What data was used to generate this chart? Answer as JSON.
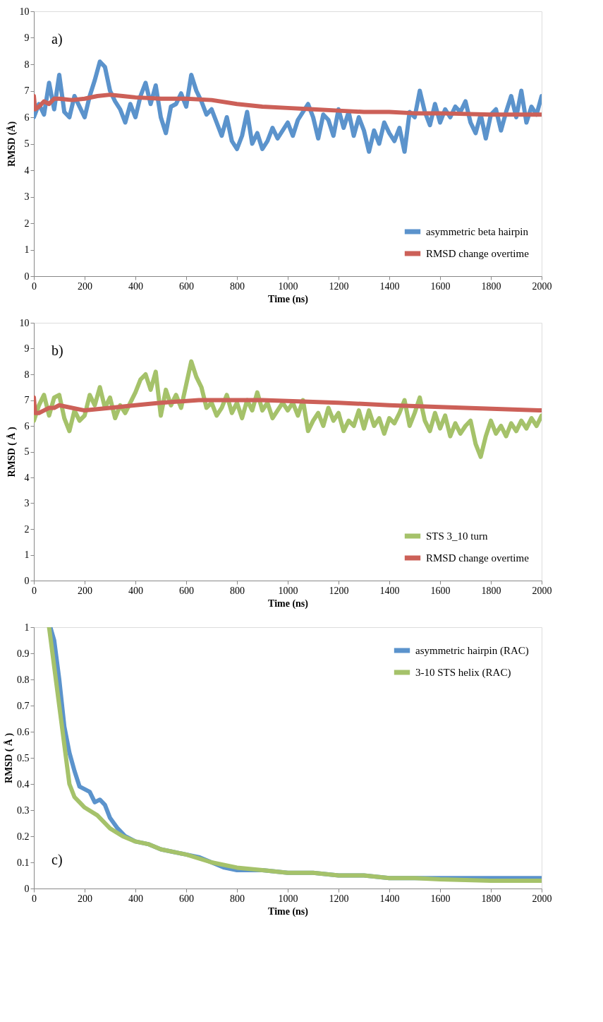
{
  "chart_data": [
    {
      "type": "line",
      "xlabel": "Time (ns)",
      "ylabel": "RMSD (Å)",
      "annotations": [
        "a)"
      ],
      "xlim": [
        0,
        2000
      ],
      "ylim": [
        0,
        10
      ],
      "xticks": [
        0,
        200,
        400,
        600,
        800,
        1000,
        1200,
        1400,
        1600,
        1800,
        2000
      ],
      "yticks": [
        0,
        1,
        2,
        3,
        4,
        5,
        6,
        7,
        8,
        9,
        10
      ],
      "grid": false,
      "legend": "bottom right",
      "line_style": "solid",
      "marker": "none",
      "series": [
        {
          "name": "asymmetric beta hairpin",
          "color": "#5b93cc",
          "x": [
            0,
            20,
            40,
            60,
            80,
            100,
            120,
            140,
            160,
            180,
            200,
            220,
            240,
            260,
            280,
            300,
            320,
            340,
            360,
            380,
            400,
            420,
            440,
            460,
            480,
            500,
            520,
            540,
            560,
            580,
            600,
            620,
            640,
            660,
            680,
            700,
            720,
            740,
            760,
            780,
            800,
            820,
            840,
            860,
            880,
            900,
            920,
            940,
            960,
            980,
            1000,
            1020,
            1040,
            1060,
            1080,
            1100,
            1120,
            1140,
            1160,
            1180,
            1200,
            1220,
            1240,
            1260,
            1280,
            1300,
            1320,
            1340,
            1360,
            1380,
            1400,
            1420,
            1440,
            1460,
            1480,
            1500,
            1520,
            1540,
            1560,
            1580,
            1600,
            1620,
            1640,
            1660,
            1680,
            1700,
            1720,
            1740,
            1760,
            1780,
            1800,
            1820,
            1840,
            1860,
            1880,
            1900,
            1920,
            1940,
            1960,
            1980,
            2000
          ],
          "values": [
            6.0,
            6.5,
            6.1,
            7.3,
            6.3,
            7.6,
            6.2,
            6.0,
            6.8,
            6.4,
            6.0,
            6.8,
            7.4,
            8.1,
            7.9,
            7.0,
            6.6,
            6.3,
            5.8,
            6.5,
            6.0,
            6.8,
            7.3,
            6.5,
            7.2,
            6.0,
            5.4,
            6.4,
            6.5,
            6.9,
            6.4,
            7.6,
            7.0,
            6.6,
            6.1,
            6.3,
            5.8,
            5.3,
            6.0,
            5.1,
            4.8,
            5.3,
            6.2,
            5.0,
            5.4,
            4.8,
            5.1,
            5.6,
            5.2,
            5.5,
            5.8,
            5.3,
            5.9,
            6.2,
            6.5,
            6.0,
            5.2,
            6.1,
            5.9,
            5.3,
            6.3,
            5.6,
            6.2,
            5.3,
            6.0,
            5.5,
            4.7,
            5.5,
            5.0,
            5.8,
            5.4,
            5.1,
            5.6,
            4.7,
            6.2,
            6.0,
            7.0,
            6.2,
            5.7,
            6.5,
            5.8,
            6.3,
            6.0,
            6.4,
            6.2,
            6.6,
            5.8,
            5.4,
            6.1,
            5.2,
            6.1,
            6.3,
            5.5,
            6.2,
            6.8,
            6.0,
            7.0,
            5.8,
            6.4,
            6.1,
            6.8
          ]
        },
        {
          "name": "RMSD change overtime",
          "color": "#cc6058",
          "x": [
            0,
            5,
            20,
            40,
            60,
            80,
            100,
            150,
            200,
            250,
            300,
            350,
            400,
            500,
            600,
            700,
            800,
            900,
            1000,
            1100,
            1200,
            1300,
            1400,
            1500,
            1600,
            1800,
            2000
          ],
          "values": [
            6.8,
            6.3,
            6.4,
            6.6,
            6.5,
            6.7,
            6.7,
            6.65,
            6.7,
            6.8,
            6.85,
            6.8,
            6.75,
            6.7,
            6.7,
            6.65,
            6.5,
            6.4,
            6.35,
            6.3,
            6.25,
            6.2,
            6.2,
            6.15,
            6.15,
            6.1,
            6.1
          ]
        }
      ]
    },
    {
      "type": "line",
      "xlabel": "Time (ns)",
      "ylabel": "RMSD ( Å )",
      "annotations": [
        "b)"
      ],
      "xlim": [
        0,
        2000
      ],
      "ylim": [
        0,
        10
      ],
      "xticks": [
        0,
        200,
        400,
        600,
        800,
        1000,
        1200,
        1400,
        1600,
        1800,
        2000
      ],
      "yticks": [
        0,
        1,
        2,
        3,
        4,
        5,
        6,
        7,
        8,
        9,
        10
      ],
      "grid": false,
      "legend": "bottom right",
      "line_style": "solid",
      "marker": "none",
      "series": [
        {
          "name": "STS 3_10 turn",
          "color": "#a5c26a",
          "x": [
            0,
            20,
            40,
            60,
            80,
            100,
            120,
            140,
            160,
            180,
            200,
            220,
            240,
            260,
            280,
            300,
            320,
            340,
            360,
            380,
            400,
            420,
            440,
            460,
            480,
            500,
            520,
            540,
            560,
            580,
            600,
            620,
            640,
            660,
            680,
            700,
            720,
            740,
            760,
            780,
            800,
            820,
            840,
            860,
            880,
            900,
            920,
            940,
            960,
            980,
            1000,
            1020,
            1040,
            1060,
            1080,
            1100,
            1120,
            1140,
            1160,
            1180,
            1200,
            1220,
            1240,
            1260,
            1280,
            1300,
            1320,
            1340,
            1360,
            1380,
            1400,
            1420,
            1440,
            1460,
            1480,
            1500,
            1520,
            1540,
            1560,
            1580,
            1600,
            1620,
            1640,
            1660,
            1680,
            1700,
            1720,
            1740,
            1760,
            1780,
            1800,
            1820,
            1840,
            1860,
            1880,
            1900,
            1920,
            1940,
            1960,
            1980,
            2000
          ],
          "values": [
            6.2,
            6.8,
            7.2,
            6.4,
            7.1,
            7.2,
            6.3,
            5.8,
            6.6,
            6.2,
            6.4,
            7.2,
            6.8,
            7.5,
            6.7,
            7.1,
            6.3,
            6.8,
            6.5,
            6.9,
            7.3,
            7.8,
            8.0,
            7.4,
            8.1,
            6.4,
            7.4,
            6.8,
            7.2,
            6.7,
            7.6,
            8.5,
            7.9,
            7.5,
            6.7,
            6.9,
            6.4,
            6.7,
            7.2,
            6.5,
            6.9,
            6.3,
            7.0,
            6.6,
            7.3,
            6.6,
            6.9,
            6.3,
            6.6,
            6.9,
            6.6,
            6.9,
            6.4,
            7.0,
            5.8,
            6.2,
            6.5,
            6.0,
            6.7,
            6.2,
            6.5,
            5.8,
            6.2,
            6.0,
            6.6,
            5.9,
            6.6,
            6.0,
            6.3,
            5.7,
            6.3,
            6.1,
            6.5,
            7.0,
            6.0,
            6.5,
            7.1,
            6.2,
            5.8,
            6.5,
            5.9,
            6.4,
            5.6,
            6.1,
            5.7,
            6.0,
            6.2,
            5.3,
            4.8,
            5.6,
            6.2,
            5.7,
            6.0,
            5.6,
            6.1,
            5.8,
            6.2,
            5.9,
            6.3,
            6.0,
            6.4
          ]
        },
        {
          "name": "RMSD change overtime",
          "color": "#cc6058",
          "x": [
            0,
            5,
            20,
            40,
            60,
            80,
            100,
            150,
            200,
            300,
            400,
            500,
            650,
            900,
            1200,
            1400,
            1700,
            2000
          ],
          "values": [
            7.1,
            6.5,
            6.5,
            6.6,
            6.7,
            6.7,
            6.8,
            6.7,
            6.6,
            6.7,
            6.8,
            6.9,
            7.0,
            7.0,
            6.9,
            6.8,
            6.7,
            6.6
          ]
        }
      ]
    },
    {
      "type": "line",
      "xlabel": "Time (ns)",
      "ylabel": "RMSD ( Å )",
      "annotations": [
        "c)"
      ],
      "xlim": [
        0,
        2000
      ],
      "ylim": [
        0,
        1
      ],
      "xticks": [
        0,
        200,
        400,
        600,
        800,
        1000,
        1200,
        1400,
        1600,
        1800,
        2000
      ],
      "yticks": [
        0,
        0.1,
        0.2,
        0.3,
        0.4,
        0.5,
        0.6,
        0.7,
        0.8,
        0.9,
        1
      ],
      "grid": false,
      "legend": "top right",
      "line_style": "solid",
      "marker": "none",
      "series": [
        {
          "name": "asymmetric hairpin (RAC)",
          "color": "#5b93cc",
          "x": [
            65,
            80,
            100,
            120,
            140,
            160,
            180,
            200,
            220,
            240,
            260,
            280,
            300,
            330,
            360,
            400,
            450,
            500,
            550,
            600,
            650,
            700,
            750,
            800,
            900,
            1000,
            1100,
            1200,
            1300,
            1400,
            1500,
            1600,
            1800,
            2000
          ],
          "values": [
            1.0,
            0.95,
            0.8,
            0.62,
            0.52,
            0.45,
            0.39,
            0.38,
            0.37,
            0.33,
            0.34,
            0.32,
            0.27,
            0.23,
            0.2,
            0.18,
            0.17,
            0.15,
            0.14,
            0.13,
            0.12,
            0.1,
            0.08,
            0.07,
            0.07,
            0.06,
            0.06,
            0.05,
            0.05,
            0.04,
            0.04,
            0.04,
            0.04,
            0.04
          ]
        },
        {
          "name": "3-10 STS helix (RAC)",
          "color": "#a5c26a",
          "x": [
            60,
            80,
            100,
            120,
            140,
            160,
            180,
            200,
            250,
            300,
            350,
            400,
            450,
            500,
            600,
            700,
            800,
            900,
            1000,
            1100,
            1200,
            1300,
            1400,
            1500,
            1600,
            1800,
            2000
          ],
          "values": [
            1.0,
            0.85,
            0.7,
            0.55,
            0.4,
            0.35,
            0.33,
            0.31,
            0.28,
            0.23,
            0.2,
            0.18,
            0.17,
            0.15,
            0.13,
            0.1,
            0.08,
            0.07,
            0.06,
            0.06,
            0.05,
            0.05,
            0.04,
            0.04,
            0.035,
            0.03,
            0.03
          ]
        }
      ]
    }
  ]
}
